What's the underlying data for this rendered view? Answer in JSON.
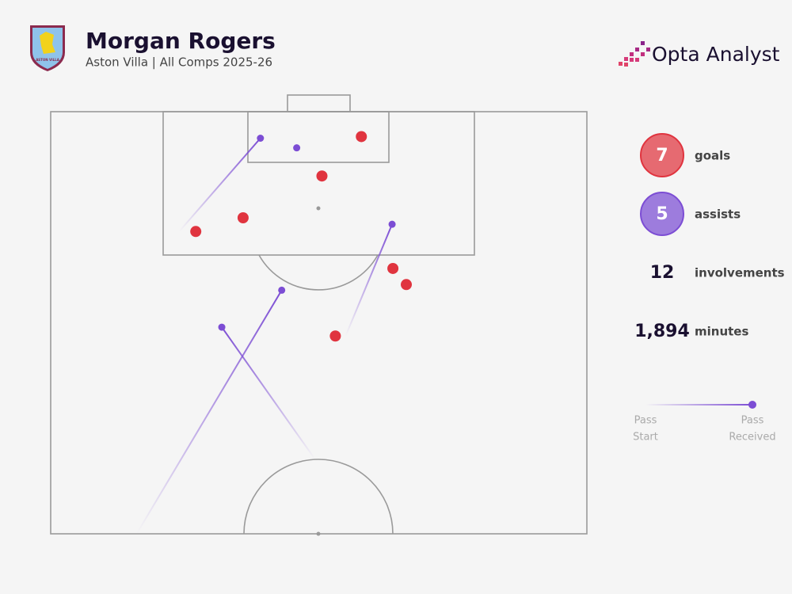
{
  "header": {
    "title": "Morgan Rogers",
    "subtitle": "Aston Villa | All Comps 2025-26",
    "brand": "Opta Analyst",
    "crest": "ASTON VILLA"
  },
  "chart_data": {
    "type": "scatter",
    "xlim": [
      0,
      68
    ],
    "ylim": [
      0,
      52.5
    ],
    "goals": {
      "color": "#e0343f",
      "x": [
        39.4,
        34.4,
        24.4,
        18.4,
        43.4,
        45.1,
        36.1
      ],
      "y": [
        3.1,
        8.0,
        13.2,
        14.9,
        19.5,
        21.5,
        27.9
      ]
    },
    "assists": {
      "color": "#7c4dd4",
      "x": [
        26.6,
        31.2,
        43.3,
        29.3,
        21.7
      ],
      "y": [
        3.3,
        4.5,
        14.0,
        22.2,
        26.8
      ],
      "x_start": [
        16.3,
        null,
        37.4,
        10.9,
        33.5
      ],
      "y_start": [
        14.9,
        null,
        27.9,
        52.5,
        43.2
      ]
    }
  },
  "stats": [
    {
      "value": 7,
      "label": "goals"
    },
    {
      "value": 5,
      "label": "assists"
    },
    {
      "value": 12,
      "label": "involvements"
    },
    {
      "value": "1,894",
      "label": "minutes"
    }
  ],
  "legend": {
    "start": [
      "Pass",
      "Start"
    ],
    "end": [
      "Pass",
      "Received"
    ]
  }
}
